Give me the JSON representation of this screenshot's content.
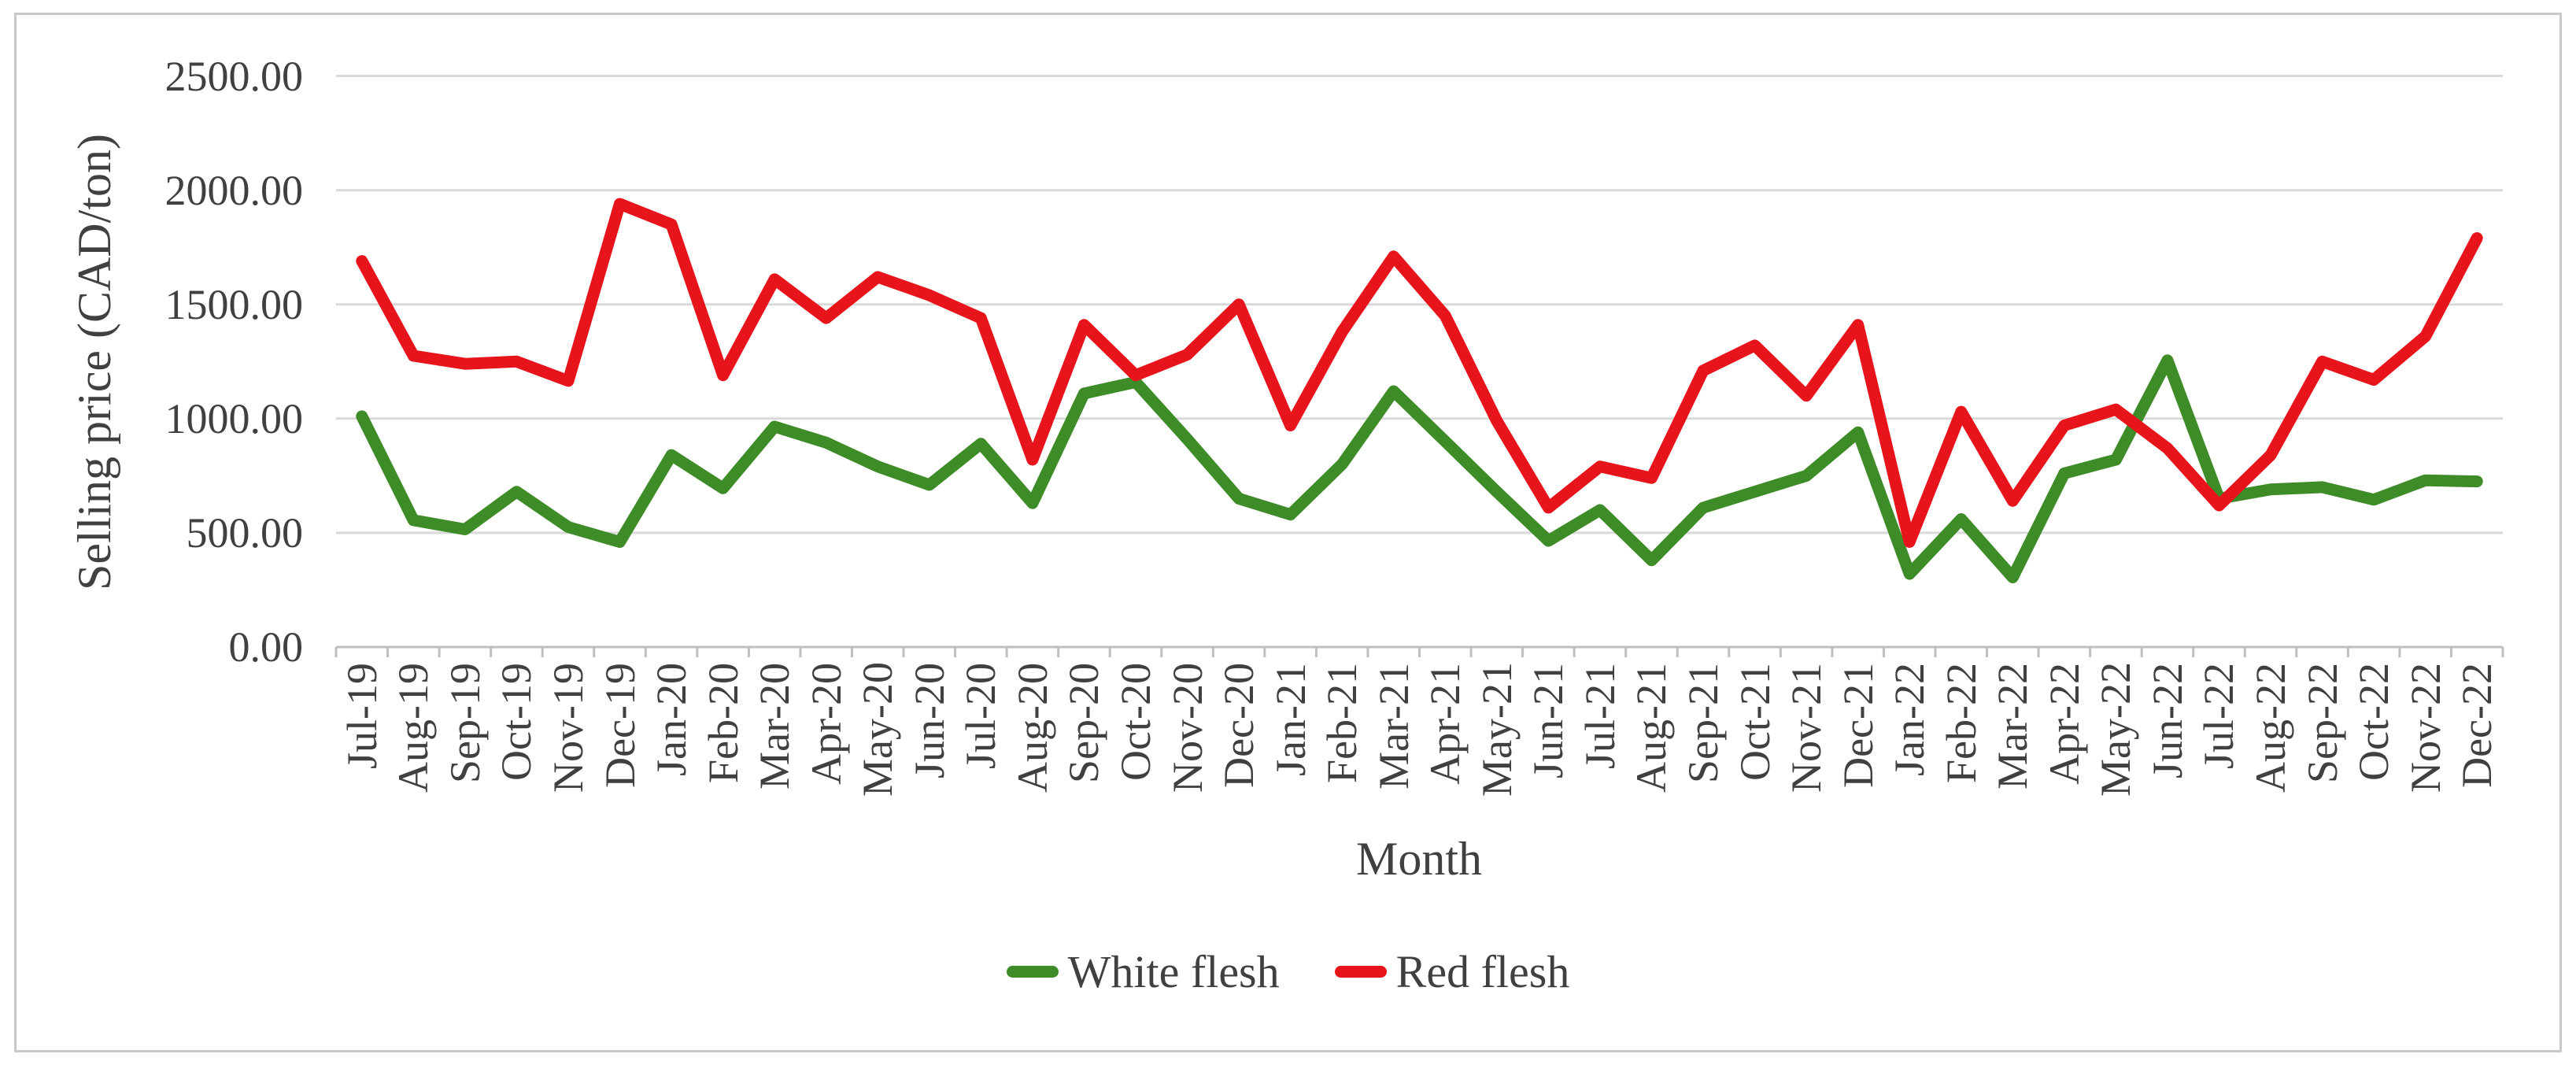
{
  "figure": {
    "background": "#ffffff",
    "border_color": "#c9c9c9"
  },
  "chart_data": {
    "type": "line",
    "title": "",
    "xlabel": "Month",
    "ylabel": "Selling price (CAD/ton)",
    "categories": [
      "Jul-19",
      "Aug-19",
      "Sep-19",
      "Oct-19",
      "Nov-19",
      "Dec-19",
      "Jan-20",
      "Feb-20",
      "Mar-20",
      "Apr-20",
      "May-20",
      "Jun-20",
      "Jul-20",
      "Aug-20",
      "Sep-20",
      "Oct-20",
      "Nov-20",
      "Dec-20",
      "Jan-21",
      "Feb-21",
      "Mar-21",
      "Apr-21",
      "May-21",
      "Jun-21",
      "Jul-21",
      "Aug-21",
      "Sep-21",
      "Oct-21",
      "Nov-21",
      "Dec-21",
      "Jan-22",
      "Feb-22",
      "Mar-22",
      "Apr-22",
      "May-22",
      "Jun-22",
      "Jul-22",
      "Aug-22",
      "Sep-22",
      "Oct-22",
      "Nov-22",
      "Dec-22"
    ],
    "series": [
      {
        "name": "White flesh",
        "color": "#3d8c28",
        "values": [
          1010,
          555,
          515,
          680,
          525,
          460,
          840,
          695,
          965,
          895,
          790,
          710,
          890,
          630,
          1110,
          1160,
          910,
          650,
          580,
          800,
          1120,
          900,
          680,
          465,
          600,
          380,
          610,
          680,
          750,
          940,
          320,
          560,
          305,
          760,
          820,
          1255,
          650,
          690,
          700,
          645,
          730,
          725
        ]
      },
      {
        "name": "Red flesh",
        "color": "#e8141c",
        "values": [
          1690,
          1275,
          1240,
          1250,
          1165,
          1940,
          1850,
          1190,
          1610,
          1440,
          1620,
          1540,
          1440,
          820,
          1410,
          1190,
          1280,
          1500,
          970,
          1380,
          1710,
          1450,
          990,
          610,
          790,
          740,
          1210,
          1320,
          1100,
          1410,
          460,
          1030,
          640,
          970,
          1040,
          870,
          620,
          840,
          1250,
          1170,
          1360,
          1790
        ]
      }
    ],
    "ylim": [
      0,
      2500
    ],
    "ytick_step": 500,
    "ytick_labels": [
      "0.00",
      "500.00",
      "1000.00",
      "1500.00",
      "2000.00",
      "2500.00"
    ],
    "grid": "horizontal",
    "gridline_color": "#d9d9d9",
    "axis_color": "#bfbfbf",
    "text_color": "#404040",
    "legend_position": "bottom"
  }
}
